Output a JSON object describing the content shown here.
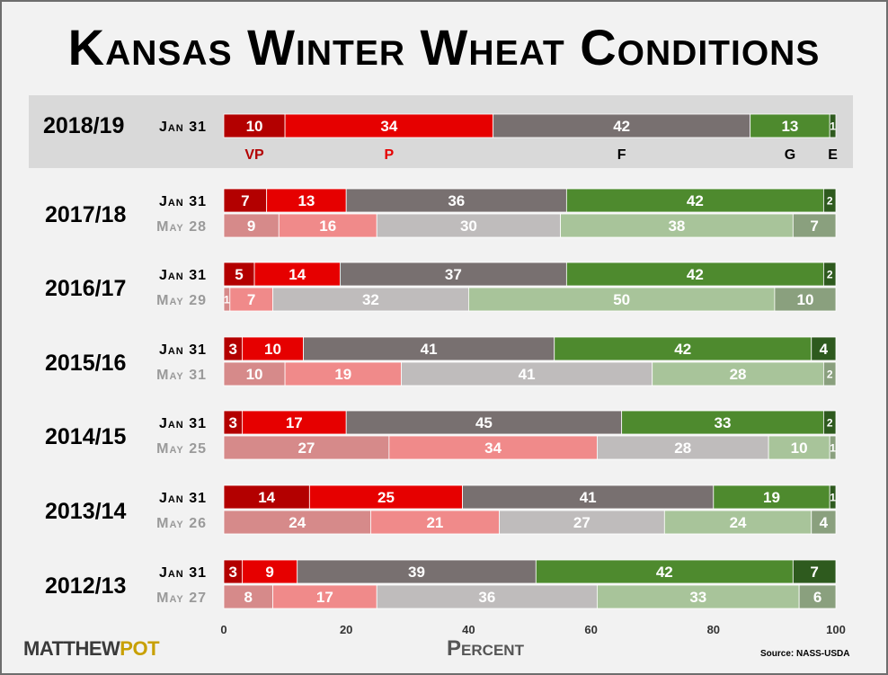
{
  "title": "Kansas Winter Wheat Conditions",
  "source": "Source: NASS-USDA",
  "brand": "MATTHEWPOT",
  "colors": {
    "current": [
      "#b30000",
      "#e60000",
      "#787070",
      "#4e8a2e",
      "#2e5a1e"
    ],
    "prior": [
      "#d68a8a",
      "#f08a8a",
      "#bfbcbc",
      "#a8c49a",
      "#8aa07e"
    ],
    "highlight": "#d9d9d9",
    "label_dark": "#000000",
    "label_prior": "#9a9a9a"
  },
  "chart_data": {
    "type": "bar",
    "orientation": "horizontal",
    "stacked": true,
    "xlabel": "Percent",
    "xlim": [
      0,
      100
    ],
    "xticks": [
      0,
      20,
      40,
      60,
      80,
      100
    ],
    "categories": [
      "VP",
      "P",
      "F",
      "G",
      "E"
    ],
    "rows": [
      {
        "year": "2018/19",
        "highlight": true,
        "series": [
          {
            "date": "Jan 31",
            "values": [
              10,
              34,
              42,
              13,
              1
            ]
          }
        ]
      },
      {
        "year": "2017/18",
        "series": [
          {
            "date": "Jan 31",
            "values": [
              7,
              13,
              36,
              42,
              2
            ]
          },
          {
            "date": "May 28",
            "values": [
              9,
              16,
              30,
              38,
              7
            ]
          }
        ]
      },
      {
        "year": "2016/17",
        "series": [
          {
            "date": "Jan 31",
            "values": [
              5,
              14,
              37,
              42,
              2
            ]
          },
          {
            "date": "May 29",
            "values": [
              1,
              7,
              32,
              50,
              10
            ]
          }
        ]
      },
      {
        "year": "2015/16",
        "series": [
          {
            "date": "Jan 31",
            "values": [
              3,
              10,
              41,
              42,
              4
            ]
          },
          {
            "date": "May 31",
            "values": [
              10,
              19,
              41,
              28,
              2
            ]
          }
        ]
      },
      {
        "year": "2014/15",
        "series": [
          {
            "date": "Jan 31",
            "values": [
              3,
              17,
              45,
              33,
              2
            ]
          },
          {
            "date": "May 25",
            "values": [
              27,
              34,
              28,
              10,
              1
            ]
          }
        ]
      },
      {
        "year": "2013/14",
        "series": [
          {
            "date": "Jan 31",
            "values": [
              14,
              25,
              41,
              19,
              1
            ]
          },
          {
            "date": "May 26",
            "values": [
              24,
              21,
              27,
              24,
              4
            ]
          }
        ]
      },
      {
        "year": "2012/13",
        "series": [
          {
            "date": "Jan 31",
            "values": [
              3,
              9,
              39,
              42,
              7
            ]
          },
          {
            "date": "May 27",
            "values": [
              8,
              17,
              36,
              33,
              6
            ]
          }
        ]
      }
    ]
  }
}
